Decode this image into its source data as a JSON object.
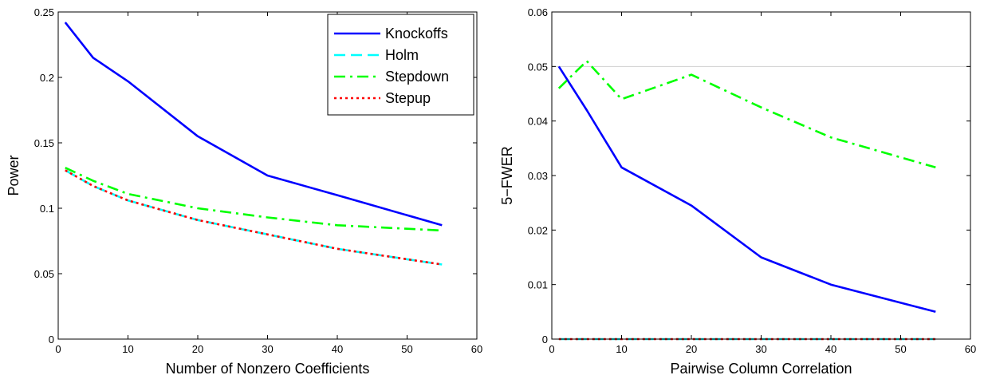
{
  "chart_data": [
    {
      "type": "line",
      "title": "",
      "xlabel": "Number of Nonzero Coefficients",
      "ylabel": "Power",
      "xlim": [
        0,
        60
      ],
      "ylim": [
        0,
        0.25
      ],
      "xticks": [
        0,
        10,
        20,
        30,
        40,
        50,
        60
      ],
      "yticks": [
        0,
        0.05,
        0.1,
        0.15,
        0.2,
        0.25
      ],
      "xtick_labels": [
        "0",
        "10",
        "20",
        "30",
        "40",
        "50",
        "60"
      ],
      "ytick_labels": [
        "0",
        "0.05",
        "0.1",
        "0.15",
        "0.2",
        "0.25"
      ],
      "grid": false,
      "legend": "top-right",
      "x": [
        1,
        5,
        10,
        20,
        30,
        40,
        55
      ],
      "series": [
        {
          "name": "Knockoffs",
          "color": "#0000ff",
          "dash": "solid",
          "values": [
            0.242,
            0.215,
            0.197,
            0.155,
            0.125,
            0.11,
            0.087
          ]
        },
        {
          "name": "Holm",
          "color": "#00ffff",
          "dash": "dashed",
          "values": [
            0.129,
            0.117,
            0.106,
            0.091,
            0.08,
            0.069,
            0.057
          ]
        },
        {
          "name": "Stepdown",
          "color": "#00ff00",
          "dash": "dashdot",
          "values": [
            0.131,
            0.121,
            0.111,
            0.1,
            0.093,
            0.087,
            0.083
          ]
        },
        {
          "name": "Stepup",
          "color": "#ff0000",
          "dash": "dotted",
          "values": [
            0.129,
            0.117,
            0.106,
            0.091,
            0.08,
            0.069,
            0.057
          ]
        }
      ]
    },
    {
      "type": "line",
      "title": "",
      "xlabel": "Pairwise Column Correlation",
      "ylabel": "5−FWER",
      "xlim": [
        0,
        60
      ],
      "ylim": [
        0,
        0.06
      ],
      "xticks": [
        0,
        10,
        20,
        30,
        40,
        50,
        60
      ],
      "yticks": [
        0,
        0.01,
        0.02,
        0.03,
        0.04,
        0.05,
        0.06
      ],
      "xtick_labels": [
        "0",
        "10",
        "20",
        "30",
        "40",
        "50",
        "60"
      ],
      "ytick_labels": [
        "0",
        "0.01",
        "0.02",
        "0.03",
        "0.04",
        "0.05",
        "0.06"
      ],
      "grid": false,
      "reference_line": 0.05,
      "x": [
        1,
        5,
        10,
        20,
        30,
        40,
        55
      ],
      "series": [
        {
          "name": "Knockoffs",
          "color": "#0000ff",
          "dash": "solid",
          "values": [
            0.05,
            0.042,
            0.0315,
            0.0245,
            0.015,
            0.01,
            0.005
          ]
        },
        {
          "name": "Holm",
          "color": "#00ffff",
          "dash": "dashed",
          "values": [
            0,
            0,
            0,
            0,
            0,
            0,
            0
          ]
        },
        {
          "name": "Stepdown",
          "color": "#00ff00",
          "dash": "dashdot",
          "values": [
            0.046,
            0.051,
            0.044,
            0.0485,
            0.0425,
            0.037,
            0.0315
          ]
        },
        {
          "name": "Stepup",
          "color": "#ff0000",
          "dash": "dotted",
          "values": [
            0,
            0,
            0,
            0,
            0,
            0,
            0
          ]
        }
      ]
    }
  ]
}
